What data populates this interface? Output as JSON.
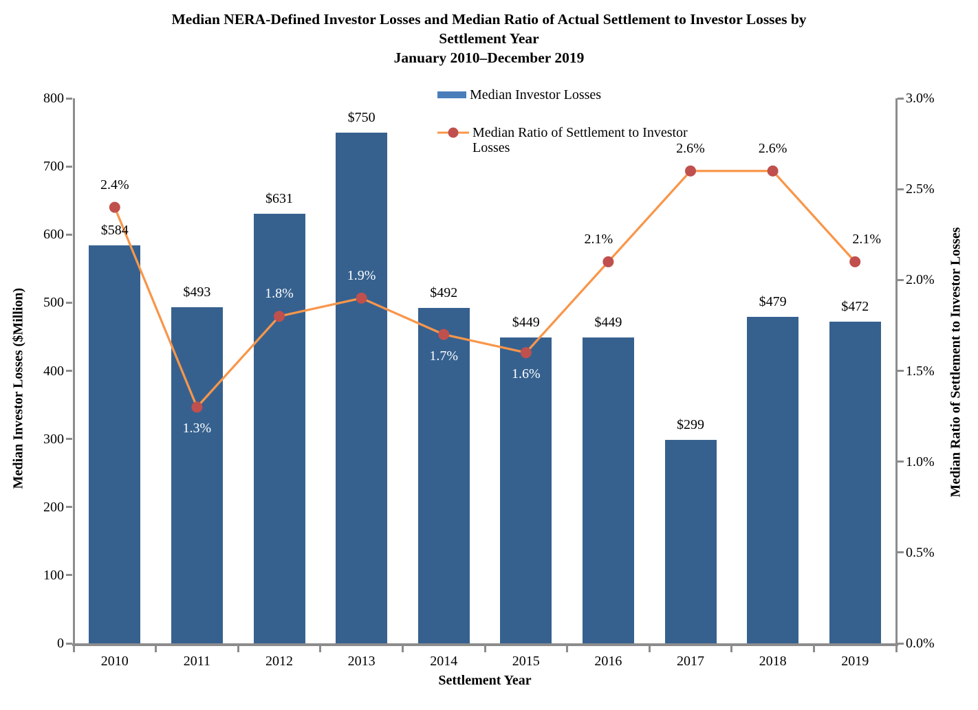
{
  "title": {
    "line1": "Median NERA-Defined Investor Losses and Median Ratio of Actual Settlement to Investor Losses by",
    "line2": "Settlement Year",
    "line3": "January 2010–December 2019"
  },
  "legend": {
    "bar_label": "Median Investor Losses",
    "line_label": "Median Ratio of Settlement to Investor Losses"
  },
  "axes": {
    "left_title": "Median Investor Losses ($Million)",
    "right_title": "Median Ratio of Settlement to Investor Losses",
    "x_title": "Settlement Year"
  },
  "colors": {
    "bar": "#36618F",
    "legend_swatch": "#4A7EBB",
    "line": "#F8964A",
    "marker": "#C0504D",
    "axis": "#8C8C8C",
    "label_black": "#000000",
    "label_white": "#FFFFFF"
  },
  "chart_data": {
    "type": "combo-bar-line",
    "title": "Median NERA-Defined Investor Losses and Median Ratio of Actual Settlement to Investor Losses by Settlement Year, January 2010–December 2019",
    "categories": [
      "2010",
      "2011",
      "2012",
      "2013",
      "2014",
      "2015",
      "2016",
      "2017",
      "2018",
      "2019"
    ],
    "series": [
      {
        "name": "Median Investor Losses",
        "type": "bar",
        "axis": "left",
        "values": [
          584,
          493,
          631,
          750,
          492,
          449,
          449,
          299,
          479,
          472
        ],
        "labels": [
          "$584",
          "$493",
          "$631",
          "$750",
          "$492",
          "$449",
          "$449",
          "$299",
          "$479",
          "$472"
        ]
      },
      {
        "name": "Median Ratio of Settlement to Investor Losses",
        "type": "line",
        "axis": "right",
        "values_pct": [
          2.4,
          1.3,
          1.8,
          1.9,
          1.7,
          1.6,
          2.1,
          2.6,
          2.6,
          2.1
        ],
        "labels": [
          "2.4%",
          "1.3%",
          "1.8%",
          "1.9%",
          "1.7%",
          "1.6%",
          "2.1%",
          "2.6%",
          "2.6%",
          "2.1%"
        ],
        "label_position": [
          "above",
          "below",
          "above",
          "above",
          "below",
          "below",
          "above",
          "above",
          "above",
          "above"
        ],
        "label_color": [
          "black",
          "white",
          "white",
          "white",
          "white",
          "white",
          "black",
          "black",
          "black",
          "black"
        ],
        "label_dx": [
          0,
          0,
          0,
          0,
          0,
          0,
          -14,
          0,
          0,
          17
        ]
      }
    ],
    "left_axis": {
      "min": 0,
      "max": 800,
      "step": 100,
      "title": "Median Investor Losses ($Million)"
    },
    "right_axis": {
      "min": 0.0,
      "max": 3.0,
      "step": 0.5,
      "format": "percent1",
      "title": "Median Ratio of Settlement to Investor Losses"
    },
    "x_axis": {
      "title": "Settlement Year"
    },
    "grid": false,
    "legend_position": "top-center"
  }
}
